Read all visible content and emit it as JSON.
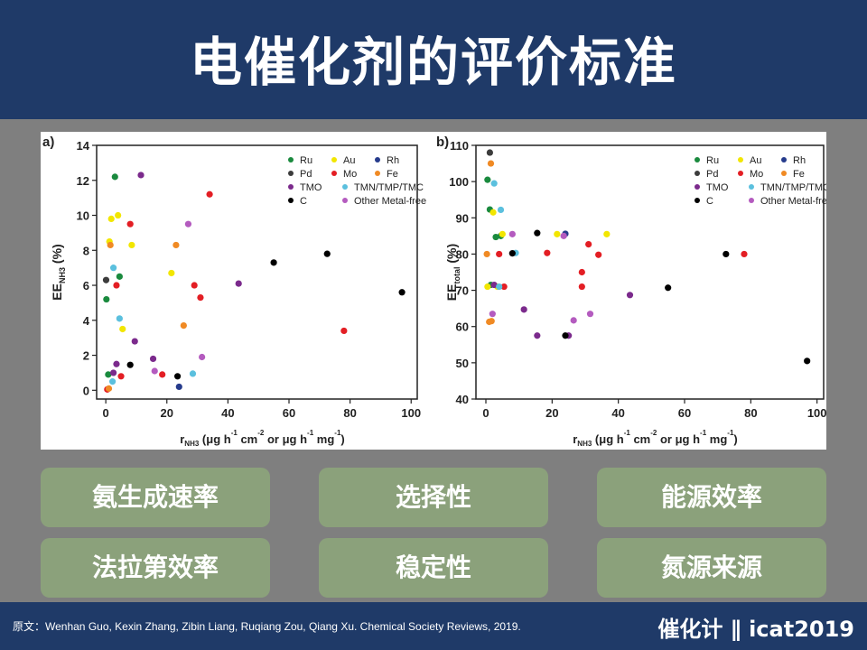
{
  "title": "电催化剂的评价标准",
  "buttons": [
    "氨生成速率",
    "选择性",
    "能源效率",
    "法拉第效率",
    "稳定性",
    "氮源来源"
  ],
  "footer": {
    "citation": "原文：Wenhan Guo, Kexin Zhang, Zibin Liang, Ruqiang Zou, Qiang Xu. Chemical Society Reviews, 2019.",
    "brand": "催化计 ∥ icat2019"
  },
  "legend_entries": [
    {
      "name": "Ru",
      "color": "#1a8a3e"
    },
    {
      "name": "Au",
      "color": "#f2e600"
    },
    {
      "name": "Rh",
      "color": "#263b8c"
    },
    {
      "name": "Pd",
      "color": "#3c3c3c"
    },
    {
      "name": "Mo",
      "color": "#e31e24"
    },
    {
      "name": "Fe",
      "color": "#f08a24"
    },
    {
      "name": "TMO",
      "color": "#7b2a8c"
    },
    {
      "name": "TMN/TMP/TMC",
      "color": "#5bc0de"
    },
    {
      "name": "C",
      "color": "#000000"
    },
    {
      "name": "Other Metal-free",
      "color": "#b45bbf"
    }
  ],
  "chart_data": [
    {
      "type": "scatter",
      "panel_label": "a)",
      "xlabel": "r_NH3 (μg h-1 cm-2 or μg h-1 mg-1)",
      "ylabel": "EE_NH3 (%)",
      "xlim": [
        -3,
        102
      ],
      "ylim": [
        -0.5,
        14
      ],
      "xticks": [
        0,
        20,
        40,
        60,
        80,
        100
      ],
      "yticks": [
        0,
        2,
        4,
        6,
        8,
        10,
        12,
        14
      ],
      "legend_position": "top-right",
      "series": [
        {
          "name": "Ru",
          "points": [
            [
              3,
              12.2
            ],
            [
              4.5,
              6.5
            ],
            [
              0.2,
              5.2
            ],
            [
              0.8,
              0.9
            ]
          ]
        },
        {
          "name": "Au",
          "points": [
            [
              4,
              10.0
            ],
            [
              1.8,
              9.8
            ],
            [
              1.2,
              8.5
            ],
            [
              8.5,
              8.3
            ],
            [
              21.5,
              6.7
            ],
            [
              5.5,
              3.5
            ]
          ]
        },
        {
          "name": "Rh",
          "points": [
            [
              24,
              0.2
            ]
          ]
        },
        {
          "name": "Pd",
          "points": [
            [
              0.1,
              6.3
            ]
          ]
        },
        {
          "name": "Mo",
          "points": [
            [
              8,
              9.5
            ],
            [
              34,
              11.2
            ],
            [
              29,
              6.0
            ],
            [
              31,
              5.3
            ],
            [
              3.5,
              6.0
            ],
            [
              5,
              0.8
            ],
            [
              18.5,
              0.9
            ],
            [
              78,
              3.4
            ],
            [
              0.5,
              0.05
            ]
          ]
        },
        {
          "name": "Fe",
          "points": [
            [
              1.5,
              8.3
            ],
            [
              23,
              8.3
            ],
            [
              25.5,
              3.7
            ],
            [
              1,
              0.1
            ]
          ]
        },
        {
          "name": "TMO",
          "points": [
            [
              11.5,
              12.3
            ],
            [
              43.5,
              6.1
            ],
            [
              9.5,
              2.8
            ],
            [
              15.5,
              1.8
            ],
            [
              3.5,
              1.5
            ],
            [
              2.5,
              1.0
            ]
          ]
        },
        {
          "name": "TMN/TMP/TMC",
          "points": [
            [
              2.5,
              7.0
            ],
            [
              4.5,
              4.1
            ],
            [
              28.5,
              0.95
            ],
            [
              2.2,
              0.5
            ]
          ]
        },
        {
          "name": "C",
          "points": [
            [
              55,
              7.3
            ],
            [
              72.5,
              7.8
            ],
            [
              97,
              5.6
            ],
            [
              8,
              1.45
            ],
            [
              23.5,
              0.8
            ]
          ]
        },
        {
          "name": "Other Metal-free",
          "points": [
            [
              27,
              9.5
            ],
            [
              31.5,
              1.9
            ],
            [
              16,
              1.1
            ]
          ]
        }
      ]
    },
    {
      "type": "scatter",
      "panel_label": "b)",
      "xlabel": "r_NH3 (μg h-1 cm-2 or μg h-1 mg-1)",
      "ylabel": "EE_total (%)",
      "xlim": [
        -3,
        102
      ],
      "ylim": [
        40,
        110
      ],
      "xticks": [
        0,
        20,
        40,
        60,
        80,
        100
      ],
      "yticks": [
        40,
        50,
        60,
        70,
        80,
        90,
        100,
        110
      ],
      "legend_position": "top-right",
      "series": [
        {
          "name": "Ru",
          "points": [
            [
              0.5,
              100.5
            ],
            [
              1.2,
              92.3
            ],
            [
              3,
              84.7
            ],
            [
              4.5,
              85.0
            ],
            [
              1.5,
              71.5
            ]
          ]
        },
        {
          "name": "Au",
          "points": [
            [
              2.2,
              91.5
            ],
            [
              5,
              85.5
            ],
            [
              21.5,
              85.5
            ],
            [
              36.5,
              85.5
            ],
            [
              0.5,
              71.0
            ],
            [
              3.5,
              71.0
            ]
          ]
        },
        {
          "name": "Rh",
          "points": [
            [
              24,
              85.6
            ]
          ]
        },
        {
          "name": "Pd",
          "points": [
            [
              1.2,
              108.0
            ]
          ]
        },
        {
          "name": "Mo",
          "points": [
            [
              4,
              80.0
            ],
            [
              18.5,
              80.3
            ],
            [
              31,
              82.7
            ],
            [
              34,
              79.8
            ],
            [
              29,
              75.0
            ],
            [
              29,
              71.0
            ],
            [
              5.5,
              71.0
            ],
            [
              78,
              80.0
            ]
          ]
        },
        {
          "name": "Fe",
          "points": [
            [
              1.5,
              105.0
            ],
            [
              0.3,
              80.0
            ],
            [
              1,
              61.3
            ],
            [
              1.7,
              61.5
            ]
          ]
        },
        {
          "name": "TMO",
          "points": [
            [
              11.5,
              64.7
            ],
            [
              43.5,
              68.7
            ],
            [
              15.5,
              57.5
            ],
            [
              25,
              57.5
            ],
            [
              2.5,
              71.5
            ]
          ]
        },
        {
          "name": "TMN/TMP/TMC",
          "points": [
            [
              2.5,
              99.5
            ],
            [
              4.5,
              92.2
            ],
            [
              9,
              80.3
            ],
            [
              4,
              71.0
            ]
          ]
        },
        {
          "name": "C",
          "points": [
            [
              15.5,
              85.8
            ],
            [
              8,
              80.2
            ],
            [
              72.5,
              80.0
            ],
            [
              55,
              70.7
            ],
            [
              97,
              50.5
            ],
            [
              24,
              57.5
            ]
          ]
        },
        {
          "name": "Other Metal-free",
          "points": [
            [
              8,
              85.5
            ],
            [
              23.5,
              85.0
            ],
            [
              26.5,
              61.7
            ],
            [
              31.5,
              63.5
            ],
            [
              2,
              63.5
            ]
          ]
        }
      ]
    }
  ]
}
